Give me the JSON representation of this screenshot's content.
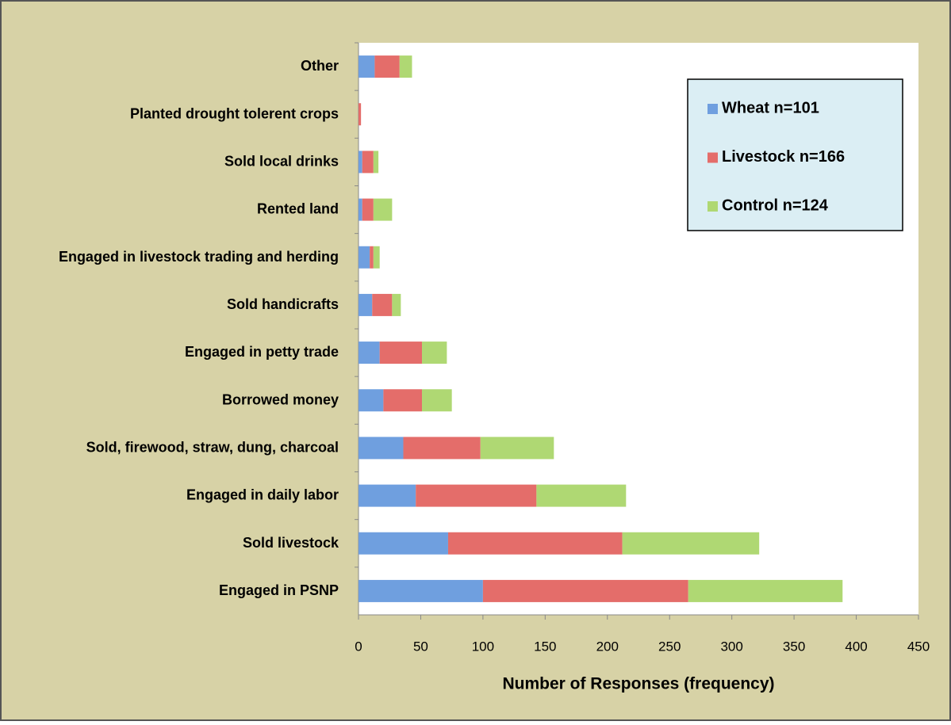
{
  "chart_data": {
    "type": "stacked_bar_horizontal",
    "categories": [
      "Other",
      "Planted drought tolerent crops",
      "Sold local drinks",
      "Rented land",
      "Engaged in livestock trading and herding",
      "Sold handicrafts",
      "Engaged in petty trade",
      "Borrowed money",
      "Sold, firewood, straw, dung, charcoal",
      "Engaged in daily labor",
      "Sold livestock",
      "Engaged in PSNP"
    ],
    "series": [
      {
        "name": "Wheat n=101",
        "color": "#6f9fdf",
        "values": [
          13,
          0,
          3,
          3,
          9,
          11,
          17,
          20,
          36,
          46,
          72,
          100
        ]
      },
      {
        "name": "Livestock n=166",
        "color": "#e46d6a",
        "values": [
          20,
          2,
          9,
          9,
          3,
          16,
          34,
          31,
          62,
          97,
          140,
          165
        ]
      },
      {
        "name": "Control n=124",
        "color": "#afd873",
        "values": [
          10,
          0,
          4,
          15,
          5,
          7,
          20,
          24,
          59,
          72,
          110,
          124
        ]
      }
    ],
    "x_label": "Number of Responses (frequency)",
    "xlim": [
      0,
      450
    ],
    "xticks": [
      0,
      50,
      100,
      150,
      200,
      250,
      300,
      350,
      400,
      450
    ],
    "legend": "top-right"
  }
}
